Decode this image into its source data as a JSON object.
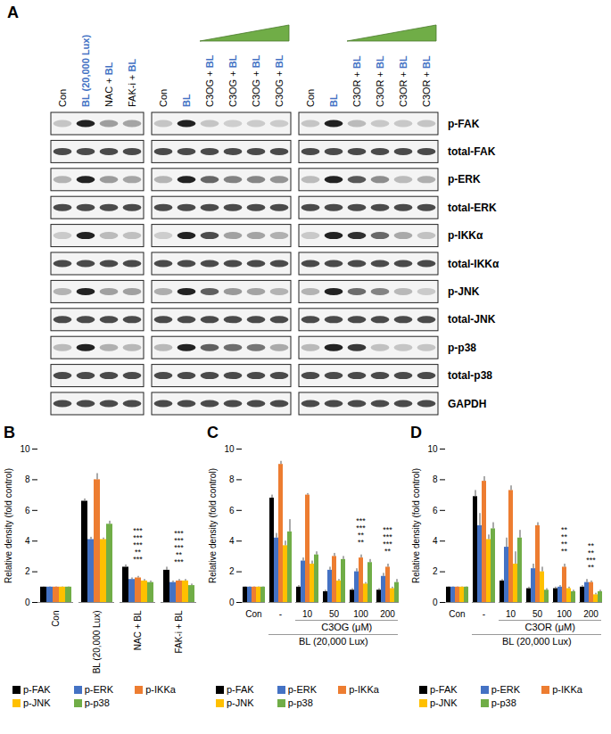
{
  "blot": {
    "panel_label": "A",
    "rows": [
      "p-FAK",
      "total-FAK",
      "p-ERK",
      "total-ERK",
      "p-IKKα",
      "total-IKKα",
      "p-JNK",
      "total-JNK",
      "p-p38",
      "total-p38",
      "GAPDH"
    ],
    "groups": [
      {
        "lanes": [
          "Con",
          "BL (20,000 Lux)",
          "NAC + BL",
          "FAK-i + BL"
        ],
        "dose_wedge": false
      },
      {
        "lanes": [
          "Con",
          "BL",
          "C3OG + BL",
          "C3OG + BL",
          "C3OG + BL",
          "C3OG + BL"
        ],
        "dose_wedge": true
      },
      {
        "lanes": [
          "Con",
          "BL",
          "C3OR + BL",
          "C3OR + BL",
          "C3OR + BL",
          "C3OR + BL"
        ],
        "dose_wedge": true
      }
    ]
  },
  "chart_data": [
    {
      "type": "bar",
      "panel_label": "B",
      "ylabel": "Relative density (fold control)",
      "categories": [
        "Con",
        "BL (20,000 Lux)",
        "NAC + BL",
        "FAK-i + BL"
      ],
      "ylim": [
        0,
        10
      ],
      "yticks": [
        0,
        2,
        4,
        6,
        8,
        10
      ],
      "legend": "bottom",
      "series": [
        {
          "name": "p-FAK",
          "color": "#000000",
          "values": [
            1,
            6.6,
            2.3,
            2.1
          ],
          "errors": [
            0.02,
            0.15,
            0.15,
            0.2
          ],
          "significance": [
            null,
            null,
            "***",
            "***"
          ]
        },
        {
          "name": "p-ERK",
          "color": "#4472c4",
          "values": [
            1,
            4.1,
            1.5,
            1.3
          ],
          "errors": [
            0.02,
            0.15,
            0.1,
            0.1
          ],
          "significance": [
            null,
            null,
            "***",
            "***"
          ]
        },
        {
          "name": "p-IKKa",
          "color": "#ed7d31",
          "values": [
            1,
            8.0,
            1.6,
            1.4
          ],
          "errors": [
            0.02,
            0.4,
            0.1,
            0.1
          ],
          "significance": [
            null,
            null,
            "***",
            "***"
          ]
        },
        {
          "name": "p-JNK",
          "color": "#ffc000",
          "values": [
            1,
            4.1,
            1.4,
            1.4
          ],
          "errors": [
            0.02,
            0.1,
            0.1,
            0.1
          ],
          "significance": [
            null,
            null,
            "**",
            "**"
          ]
        },
        {
          "name": "p-p38",
          "color": "#70ad47",
          "values": [
            1,
            5.1,
            1.3,
            1.1
          ],
          "errors": [
            0.02,
            0.2,
            0.1,
            0.1
          ],
          "significance": [
            null,
            null,
            "***",
            "***"
          ]
        }
      ]
    },
    {
      "type": "bar",
      "panel_label": "C",
      "ylabel": "Relative density (fold control)",
      "categories": [
        "Con",
        "-",
        "10",
        "50",
        "100",
        "200"
      ],
      "x_groups": [
        {
          "label": "C3OG (μM)",
          "from": "10",
          "to": "200"
        },
        {
          "label": "BL (20,000 Lux)",
          "from": "-",
          "to": "200"
        }
      ],
      "ylim": [
        0,
        10
      ],
      "yticks": [
        0,
        2,
        4,
        6,
        8,
        10
      ],
      "legend": "bottom",
      "series": [
        {
          "name": "p-FAK",
          "color": "#000000",
          "values": [
            1,
            6.8,
            1.0,
            0.7,
            0.8,
            0.8
          ],
          "errors": [
            0.02,
            0.2,
            0.1,
            0.1,
            0.1,
            0.1
          ],
          "significance": [
            null,
            null,
            null,
            null,
            "***",
            "***"
          ]
        },
        {
          "name": "p-ERK",
          "color": "#4472c4",
          "values": [
            1,
            4.2,
            2.7,
            2.1,
            2.0,
            1.7
          ],
          "errors": [
            0.02,
            0.3,
            0.2,
            0.2,
            0.2,
            0.2
          ],
          "significance": [
            null,
            null,
            null,
            null,
            "***",
            "***"
          ]
        },
        {
          "name": "p-IKKa",
          "color": "#ed7d31",
          "values": [
            1,
            9.0,
            7.0,
            3.0,
            2.9,
            2.3
          ],
          "errors": [
            0.02,
            0.2,
            0.1,
            0.2,
            0.2,
            0.2
          ],
          "significance": [
            null,
            null,
            null,
            null,
            "**",
            "***"
          ]
        },
        {
          "name": "p-JNK",
          "color": "#ffc000",
          "values": [
            1,
            3.7,
            2.5,
            1.4,
            1.2,
            0.9
          ],
          "errors": [
            0.02,
            0.3,
            0.2,
            0.1,
            0.1,
            0.1
          ],
          "significance": [
            null,
            null,
            null,
            null,
            "**",
            "**"
          ]
        },
        {
          "name": "p-p38",
          "color": "#70ad47",
          "values": [
            1,
            4.6,
            3.1,
            2.8,
            2.6,
            1.3
          ],
          "errors": [
            0.02,
            0.8,
            0.2,
            0.2,
            0.2,
            0.2
          ],
          "significance": [
            null,
            null,
            null,
            null,
            null,
            null
          ]
        }
      ]
    },
    {
      "type": "bar",
      "panel_label": "D",
      "ylabel": "Relative density (fold control)",
      "categories": [
        "Con",
        "-",
        "10",
        "50",
        "100",
        "200"
      ],
      "x_groups": [
        {
          "label": "C3OR (μM)",
          "from": "10",
          "to": "200"
        },
        {
          "label": "BL (20,000 Lux)",
          "from": "-",
          "to": "200"
        }
      ],
      "ylim": [
        0,
        10
      ],
      "yticks": [
        0,
        2,
        4,
        6,
        8,
        10
      ],
      "legend": "bottom",
      "series": [
        {
          "name": "p-FAK",
          "color": "#000000",
          "values": [
            1,
            6.9,
            1.4,
            0.9,
            0.9,
            1.0
          ],
          "errors": [
            0.02,
            0.4,
            0.1,
            0.1,
            0.1,
            0.1
          ],
          "significance": [
            null,
            null,
            null,
            null,
            "**",
            "**"
          ]
        },
        {
          "name": "p-ERK",
          "color": "#4472c4",
          "values": [
            1,
            5.0,
            3.6,
            2.2,
            1.0,
            1.3
          ],
          "errors": [
            0.02,
            0.8,
            0.6,
            0.3,
            0.1,
            0.2
          ],
          "significance": [
            null,
            null,
            null,
            null,
            "**",
            "**"
          ]
        },
        {
          "name": "p-IKKa",
          "color": "#ed7d31",
          "values": [
            1,
            7.9,
            7.3,
            5.0,
            2.3,
            1.3
          ],
          "errors": [
            0.02,
            0.3,
            0.3,
            0.2,
            0.2,
            0.1
          ],
          "significance": [
            null,
            null,
            null,
            null,
            "**",
            "***"
          ]
        },
        {
          "name": "p-JNK",
          "color": "#ffc000",
          "values": [
            1,
            4.1,
            2.5,
            2.0,
            0.9,
            0.5
          ],
          "errors": [
            0.02,
            0.3,
            0.8,
            0.3,
            0.1,
            0.1
          ],
          "significance": [
            null,
            null,
            null,
            null,
            "**",
            "**"
          ]
        },
        {
          "name": "p-p38",
          "color": "#70ad47",
          "values": [
            1,
            4.8,
            4.2,
            0.8,
            0.7,
            0.7
          ],
          "errors": [
            0.02,
            0.4,
            0.5,
            0.1,
            0.1,
            0.1
          ],
          "significance": [
            null,
            null,
            null,
            null,
            null,
            null
          ]
        }
      ]
    }
  ]
}
